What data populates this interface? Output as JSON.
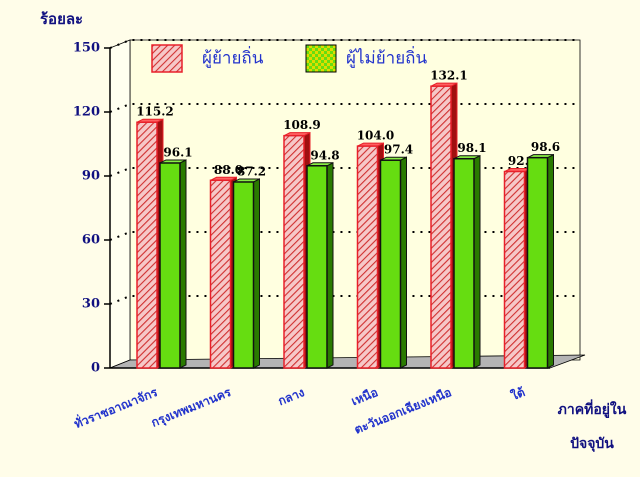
{
  "chart_data": {
    "type": "bar",
    "y_label": "ร้อยละ",
    "x_label": [
      "ภาคที่อยู่ใน",
      "ปัจจุบัน"
    ],
    "categories": [
      "ทั่วราชอาณาจักร",
      "กรุงเทพมหานคร",
      "กลาง",
      "เหนือ",
      "ตะวันออกเฉียงเหนือ",
      "ใต้"
    ],
    "series": [
      {
        "name": "ผู้ย้ายถิ่น",
        "color": "#e8202a",
        "values": [
          115.2,
          88.0,
          108.9,
          104.0,
          132.1,
          92.1
        ],
        "value_labels": [
          "115.2",
          "88.0",
          "108.9",
          "104.0",
          "132.1",
          "92.1"
        ]
      },
      {
        "name": "ผู้ไม่ย้ายถิ่น",
        "color": "#66dd11",
        "values": [
          96.1,
          87.2,
          94.8,
          97.4,
          98.1,
          98.6
        ],
        "value_labels": [
          "96.1",
          "87.2",
          "94.8",
          "97.4",
          "98.1",
          "98.6"
        ]
      }
    ],
    "ylim": [
      0,
      150
    ],
    "yticks": [
      0,
      30,
      60,
      90,
      120,
      150
    ],
    "grid": true
  }
}
